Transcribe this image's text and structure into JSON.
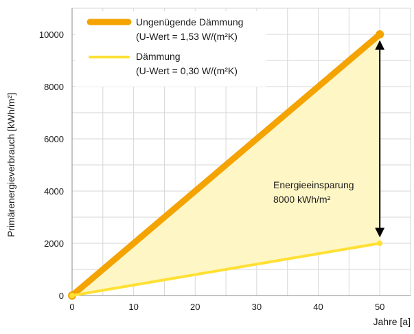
{
  "chart_data": {
    "type": "line",
    "title": "",
    "xlabel": "Jahre [a]",
    "ylabel": "Primärenergieverbrauch [kWh/m²]",
    "xlim": [
      0,
      55
    ],
    "ylim": [
      0,
      11000
    ],
    "xticks": [
      0,
      10,
      20,
      30,
      40,
      50
    ],
    "yticks": [
      0,
      2000,
      4000,
      6000,
      8000,
      10000
    ],
    "grid": true,
    "legend_position": "top-left",
    "series": [
      {
        "key": "ungenuegend",
        "legend_line1": "Ungenügende Dämmung",
        "legend_line2": "(U-Wert = 1,53 W/(m²K)",
        "color": "#f4a300",
        "x": [
          0,
          50
        ],
        "y": [
          0,
          10000
        ]
      },
      {
        "key": "daemmung",
        "legend_line1": "Dämmung",
        "legend_line2": "(U-Wert = 0,30 W/(m²K)",
        "color": "#ffe033",
        "x": [
          0,
          50
        ],
        "y": [
          0,
          2000
        ]
      }
    ],
    "shaded_area_color": "#fff6c6",
    "annotation": {
      "line1": "Energieeinsparung",
      "line2": "8000 kWh/m²",
      "x": 50,
      "y_from": 2000,
      "y_to": 10000
    }
  }
}
